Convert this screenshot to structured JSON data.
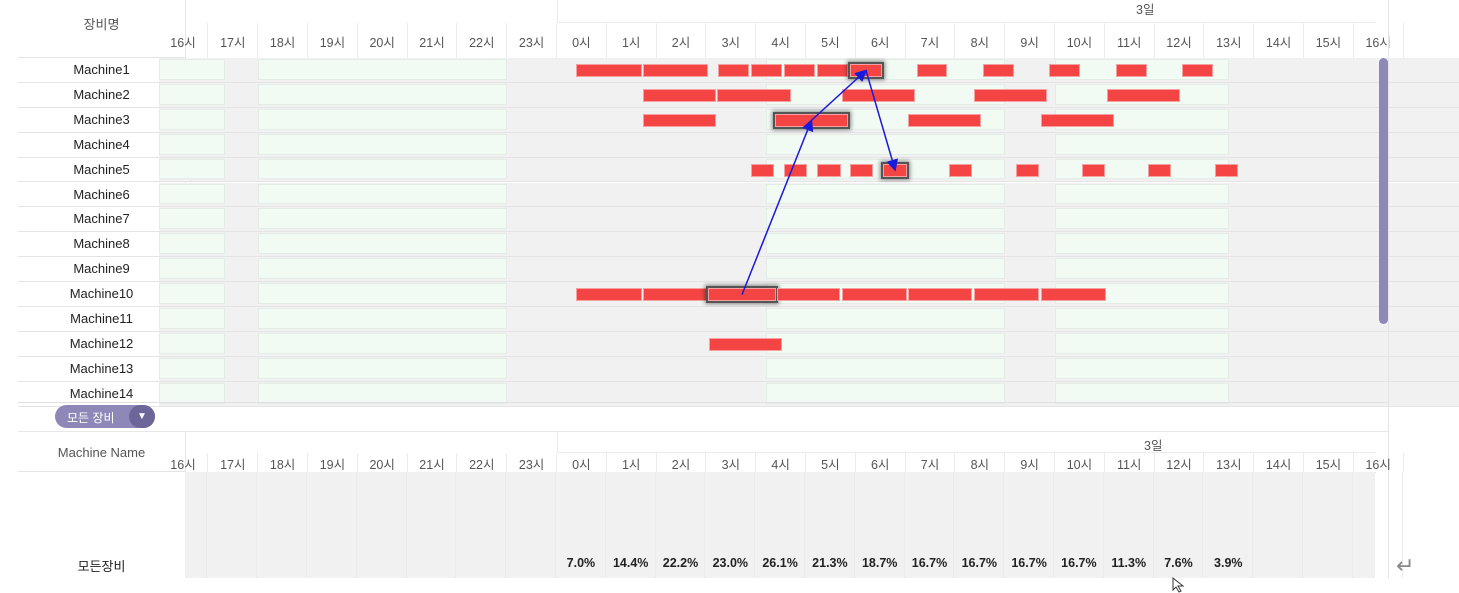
{
  "gantt": {
    "header_title": "장비명",
    "date_label": "3일",
    "hours": [
      "16시",
      "17시",
      "18시",
      "19시",
      "20시",
      "21시",
      "22시",
      "23시",
      "0시",
      "1시",
      "2시",
      "3시",
      "4시",
      "5시",
      "6시",
      "7시",
      "8시",
      "9시",
      "10시",
      "11시",
      "12시",
      "13시",
      "14시",
      "15시",
      "16시"
    ],
    "shifts": [
      {
        "start_hour": 16.0,
        "end_hour": 17.33,
        "prev_day": true
      },
      {
        "start_hour": 18.0,
        "end_hour": 23.0,
        "prev_day": true
      },
      {
        "start_hour": 4.2,
        "end_hour": 9.0,
        "prev_day": false
      },
      {
        "start_hour": 10.0,
        "end_hour": 13.5,
        "prev_day": false
      }
    ],
    "machines": [
      {
        "name": "Machine1",
        "bars": [
          [
            0.38,
            1.71
          ],
          [
            1.73,
            3.03
          ],
          [
            3.23,
            3.86
          ],
          [
            3.9,
            4.52
          ],
          [
            4.56,
            5.18
          ],
          [
            5.22,
            5.84
          ],
          [
            5.88,
            6.53,
            "hl"
          ],
          [
            7.23,
            7.83
          ],
          [
            8.55,
            9.18
          ],
          [
            9.88,
            10.5
          ],
          [
            11.22,
            11.85
          ],
          [
            12.55,
            13.17
          ]
        ]
      },
      {
        "name": "Machine2",
        "bars": [
          [
            1.73,
            3.19
          ],
          [
            3.21,
            4.7
          ],
          [
            5.72,
            7.19
          ],
          [
            8.37,
            9.84
          ],
          [
            11.04,
            12.51
          ]
        ]
      },
      {
        "name": "Machine3",
        "bars": [
          [
            1.73,
            3.19
          ],
          [
            4.38,
            5.84,
            "hl"
          ],
          [
            7.05,
            8.51
          ],
          [
            9.72,
            11.18
          ]
        ]
      },
      {
        "name": "Machine4",
        "bars": []
      },
      {
        "name": "Machine5",
        "bars": [
          [
            3.9,
            4.36
          ],
          [
            4.56,
            5.02
          ],
          [
            5.22,
            5.7
          ],
          [
            5.88,
            6.35
          ],
          [
            6.55,
            7.03,
            "hl"
          ],
          [
            7.87,
            8.33
          ],
          [
            9.22,
            9.68
          ],
          [
            10.54,
            11.0
          ],
          [
            11.87,
            12.33
          ],
          [
            13.21,
            13.67
          ]
        ]
      },
      {
        "name": "Machine6",
        "bars": []
      },
      {
        "name": "Machine7",
        "bars": []
      },
      {
        "name": "Machine8",
        "bars": []
      },
      {
        "name": "Machine9",
        "bars": []
      },
      {
        "name": "Machine10",
        "bars": [
          [
            0.38,
            1.71
          ],
          [
            1.73,
            3.01
          ],
          [
            3.03,
            4.4,
            "hl"
          ],
          [
            4.42,
            5.68
          ],
          [
            5.72,
            7.03
          ],
          [
            7.05,
            8.33
          ],
          [
            8.37,
            9.68
          ],
          [
            9.72,
            11.02
          ]
        ]
      },
      {
        "name": "Machine11",
        "bars": []
      },
      {
        "name": "Machine12",
        "bars": [
          [
            3.05,
            4.52
          ]
        ]
      },
      {
        "name": "Machine13",
        "bars": []
      },
      {
        "name": "Machine14",
        "bars": []
      }
    ],
    "links": [
      {
        "from": "Machine10",
        "to": "Machine3"
      },
      {
        "from": "Machine3",
        "to": "Machine1"
      },
      {
        "from": "Machine1",
        "to": "Machine5"
      }
    ],
    "colors": {
      "bar": "#f44444",
      "shift": "#f2faf4",
      "idle": "#f1f1f1",
      "link": "#1a1adb",
      "scrollbar": "#8d88b8"
    }
  },
  "filter": {
    "label": "모든 장비",
    "icon": "caret-down-icon",
    "color": "#8d88b8"
  },
  "summary": {
    "header_title": "Machine Name",
    "date_label": "3일",
    "row_label": "모든장비",
    "percentages": [
      "7.0%",
      "14.4%",
      "22.2%",
      "23.0%",
      "26.1%",
      "21.3%",
      "18.7%",
      "16.7%",
      "16.7%",
      "16.7%",
      "16.7%",
      "11.3%",
      "7.6%",
      "3.9%"
    ]
  }
}
